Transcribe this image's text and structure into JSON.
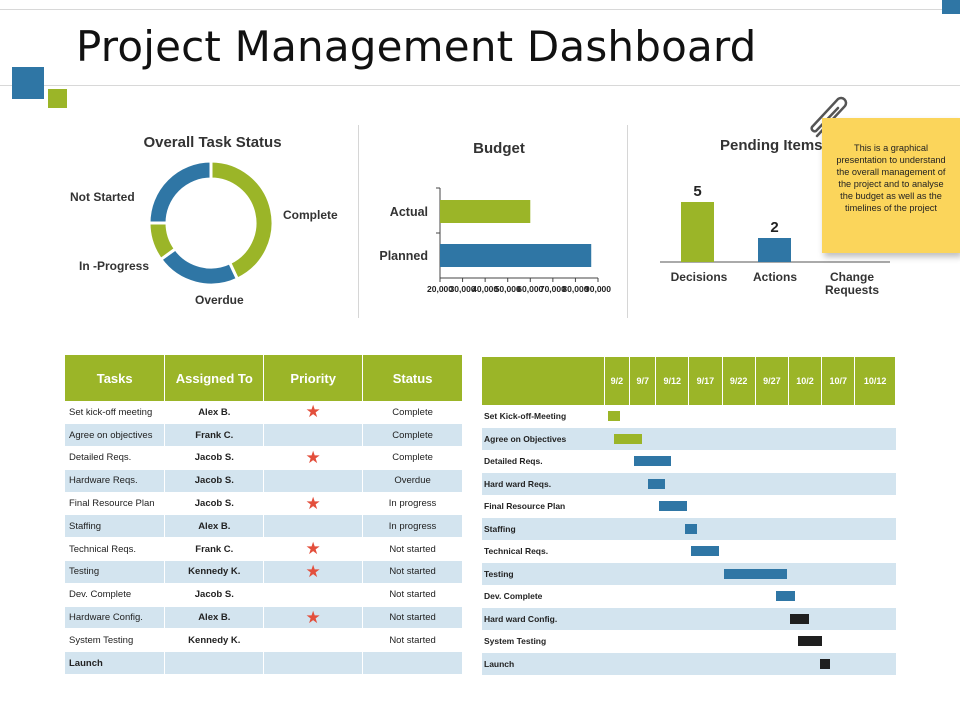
{
  "title": "Project Management Dashboard",
  "colors": {
    "green": "#9bb528",
    "blue": "#2f76a5",
    "black": "#1f1f1f",
    "note": "#fbd55b",
    "row_alt": "#d3e4ef"
  },
  "task_status": {
    "title": "Overall Task Status",
    "labels": {
      "not_started": "Not Started",
      "complete": "Complete",
      "in_progress": "In -Progress",
      "overdue": "Overdue"
    },
    "segments": [
      {
        "name": "Complete",
        "value": 43,
        "color": "#9bb528"
      },
      {
        "name": "Overdue",
        "value": 22,
        "color": "#2f76a5"
      },
      {
        "name": "In -Progress",
        "value": 10,
        "color": "#9bb528"
      },
      {
        "name": "Not Started",
        "value": 25,
        "color": "#2f76a5"
      }
    ]
  },
  "budget": {
    "title": "Budget",
    "bars": [
      {
        "name": "Actual",
        "value": 60000,
        "color": "#9bb528"
      },
      {
        "name": "Planned",
        "value": 87000,
        "color": "#2f76a5"
      }
    ],
    "ticks": [
      "20,000",
      "30,000",
      "40,000",
      "50,000",
      "60,000",
      "70,000",
      "80,000",
      "90,000"
    ]
  },
  "pending": {
    "title": "Pending Items",
    "bars": [
      {
        "name": "Decisions",
        "value": 5,
        "label": "5",
        "color": "#9bb528"
      },
      {
        "name": "Actions",
        "value": 2,
        "label": "2",
        "color": "#2f76a5"
      }
    ],
    "category_3_line1": "Change",
    "category_3_line2": "Requests"
  },
  "note": "This is a graphical presentation to understand the overall management of the project and to analyse the budget as well as the timelines of the project",
  "tasks_table": {
    "headers": [
      "Tasks",
      "Assigned To",
      "Priority",
      "Status"
    ],
    "rows": [
      {
        "task": "Set kick-off meeting",
        "assigned": "Alex B.",
        "priority": true,
        "status": "Complete"
      },
      {
        "task": "Agree on objectives",
        "assigned": "Frank C.",
        "priority": false,
        "status": "Complete"
      },
      {
        "task": "Detailed Reqs.",
        "assigned": "Jacob S.",
        "priority": true,
        "status": "Complete"
      },
      {
        "task": "Hardware Reqs.",
        "assigned": "Jacob S.",
        "priority": false,
        "status": "Overdue"
      },
      {
        "task": "Final Resource Plan",
        "assigned": "Jacob S.",
        "priority": true,
        "status": "In progress"
      },
      {
        "task": "Staffing",
        "assigned": "Alex B.",
        "priority": false,
        "status": "In progress"
      },
      {
        "task": "Technical Reqs.",
        "assigned": "Frank C.",
        "priority": true,
        "status": "Not started"
      },
      {
        "task": "Testing",
        "assigned": "Kennedy K.",
        "priority": true,
        "status": "Not started"
      },
      {
        "task": "Dev. Complete",
        "assigned": "Jacob S.",
        "priority": false,
        "status": "Not started"
      },
      {
        "task": "Hardware Config.",
        "assigned": "Alex B.",
        "priority": true,
        "status": "Not started"
      },
      {
        "task": "System Testing",
        "assigned": "Kennedy K.",
        "priority": false,
        "status": "Not started"
      },
      {
        "task": "Launch",
        "assigned": "",
        "priority": false,
        "status": ""
      }
    ]
  },
  "gantt": {
    "dates": [
      "9/2",
      "9/7",
      "9/12",
      "9/17",
      "9/22",
      "9/27",
      "10/2",
      "10/7",
      "10/12"
    ],
    "rows": [
      {
        "task": "Set Kick-off-Meeting",
        "start": 0.0,
        "duration": 0.45,
        "color": "#9bb528"
      },
      {
        "task": "Agree on Objectives",
        "start": 0.25,
        "duration": 1.05,
        "color": "#9bb528"
      },
      {
        "task": "Detailed Reqs.",
        "start": 1.0,
        "duration": 1.45,
        "color": "#2f76a5"
      },
      {
        "task": "Hard ward Reqs.",
        "start": 1.55,
        "duration": 0.65,
        "color": "#2f76a5"
      },
      {
        "task": "Final Resource Plan",
        "start": 1.98,
        "duration": 1.08,
        "color": "#2f76a5"
      },
      {
        "task": "Staffing",
        "start": 2.98,
        "duration": 0.45,
        "color": "#2f76a5"
      },
      {
        "task": "Technical Reqs.",
        "start": 3.2,
        "duration": 1.1,
        "color": "#2f76a5"
      },
      {
        "task": "Testing",
        "start": 4.5,
        "duration": 2.45,
        "color": "#2f76a5"
      },
      {
        "task": "Dev. Complete",
        "start": 6.5,
        "duration": 0.75,
        "color": "#2f76a5"
      },
      {
        "task": "Hard ward Config.",
        "start": 7.05,
        "duration": 0.75,
        "color": "#1f1f1f"
      },
      {
        "task": "System Testing",
        "start": 7.35,
        "duration": 0.95,
        "color": "#1f1f1f"
      },
      {
        "task": "Launch",
        "start": 8.2,
        "duration": 0.4,
        "color": "#1f1f1f"
      }
    ]
  }
}
